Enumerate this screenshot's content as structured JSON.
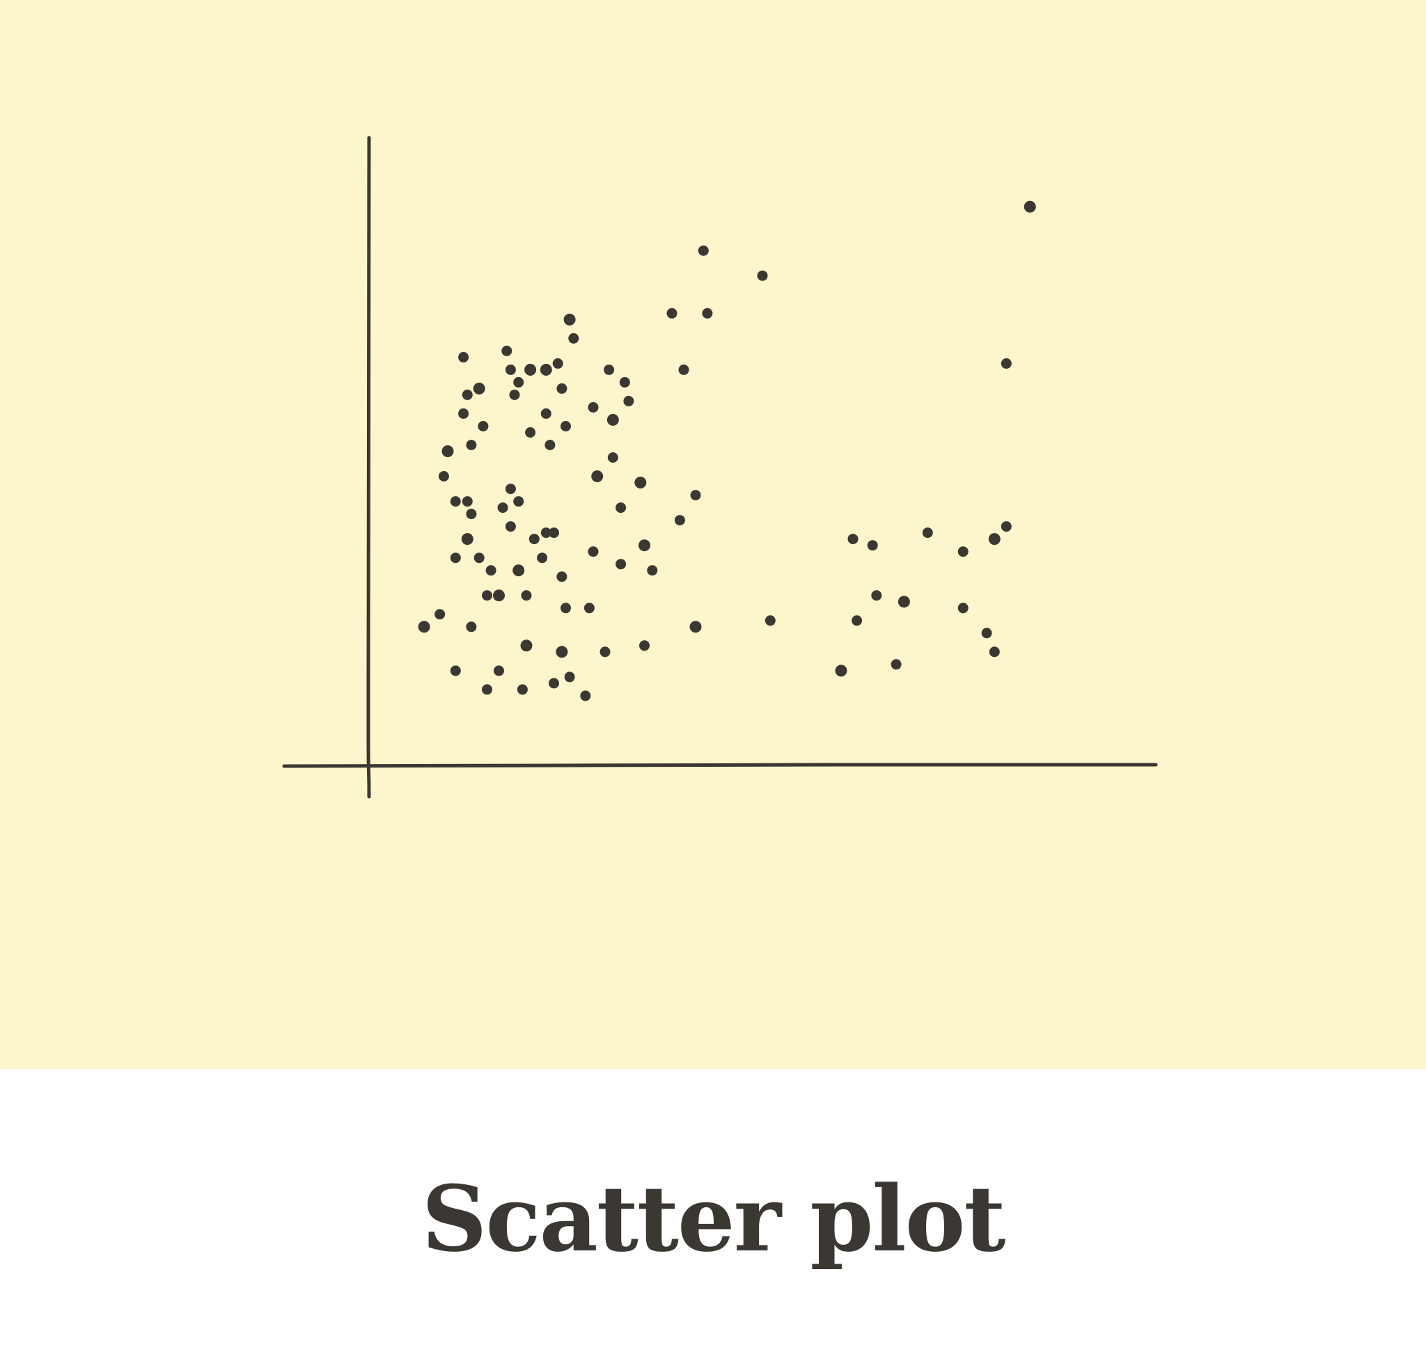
{
  "caption": {
    "title": "Scatter plot"
  },
  "colors": {
    "background_top": "#fdf5cb",
    "background_bottom": "#ffffff",
    "ink": "#3b3833"
  },
  "chart_data": {
    "type": "scatter",
    "title": "",
    "xlabel": "",
    "ylabel": "",
    "axes_style": "hand-drawn",
    "ticks": false,
    "grid": false,
    "legend": "none",
    "xlim": [
      0,
      100
    ],
    "ylim": [
      0,
      100
    ],
    "series": [
      {
        "points": [
          [
            7,
            22
          ],
          [
            9,
            24
          ],
          [
            11,
            15
          ],
          [
            13,
            22
          ],
          [
            11,
            33
          ],
          [
            12.5,
            36
          ],
          [
            13,
            40
          ],
          [
            14,
            33
          ],
          [
            15.5,
            31
          ],
          [
            15,
            27
          ],
          [
            16.5,
            27
          ],
          [
            17,
            41
          ],
          [
            9.5,
            46
          ],
          [
            11,
            42
          ],
          [
            12.5,
            42
          ],
          [
            10,
            50
          ],
          [
            13,
            51
          ],
          [
            14.5,
            54
          ],
          [
            12,
            56
          ],
          [
            12,
            65
          ],
          [
            14,
            60
          ],
          [
            12.5,
            59
          ],
          [
            19,
            42
          ],
          [
            18,
            44
          ],
          [
            18,
            38
          ],
          [
            19,
            31
          ],
          [
            20,
            27
          ],
          [
            21,
            36
          ],
          [
            22,
            33
          ],
          [
            22.5,
            37
          ],
          [
            20,
            19
          ],
          [
            16.5,
            15
          ],
          [
            15,
            12
          ],
          [
            17.5,
            66
          ],
          [
            18,
            63
          ],
          [
            20.5,
            63
          ],
          [
            18.5,
            59
          ],
          [
            19,
            61
          ],
          [
            20.5,
            53
          ],
          [
            22.5,
            56
          ],
          [
            22.5,
            63
          ],
          [
            24.5,
            60
          ],
          [
            25,
            54
          ],
          [
            23,
            51
          ],
          [
            24,
            64
          ],
          [
            25.5,
            71
          ],
          [
            26,
            68
          ],
          [
            23.5,
            37
          ],
          [
            24.5,
            30
          ],
          [
            25,
            25
          ],
          [
            24.5,
            18
          ],
          [
            23.5,
            13
          ],
          [
            19.5,
            12
          ],
          [
            27.5,
            11
          ],
          [
            25.5,
            14
          ],
          [
            31,
            55
          ],
          [
            30,
            18
          ],
          [
            28,
            25
          ],
          [
            28.5,
            34
          ],
          [
            32,
            41
          ],
          [
            29,
            46
          ],
          [
            31,
            49
          ],
          [
            32.5,
            61
          ],
          [
            30.5,
            63
          ],
          [
            32,
            32
          ],
          [
            35,
            35
          ],
          [
            39.5,
            39
          ],
          [
            36,
            31
          ],
          [
            33,
            58
          ],
          [
            28.5,
            57
          ],
          [
            34.5,
            45
          ],
          [
            35,
            19
          ],
          [
            40,
            63
          ],
          [
            43,
            72
          ],
          [
            41.5,
            43
          ],
          [
            41.5,
            22
          ],
          [
            42.5,
            82
          ],
          [
            38.5,
            72
          ],
          [
            50,
            78
          ],
          [
            51,
            23
          ],
          [
            60,
            15
          ],
          [
            62,
            23
          ],
          [
            64,
            35
          ],
          [
            61.5,
            36
          ],
          [
            64.5,
            27
          ],
          [
            68,
            26
          ],
          [
            71,
            37
          ],
          [
            75.5,
            34
          ],
          [
            67,
            16
          ],
          [
            75.5,
            25
          ],
          [
            79.5,
            36
          ],
          [
            81,
            38
          ],
          [
            81,
            64
          ],
          [
            78.5,
            21
          ],
          [
            79.5,
            18
          ],
          [
            84,
            89
          ]
        ]
      }
    ]
  }
}
